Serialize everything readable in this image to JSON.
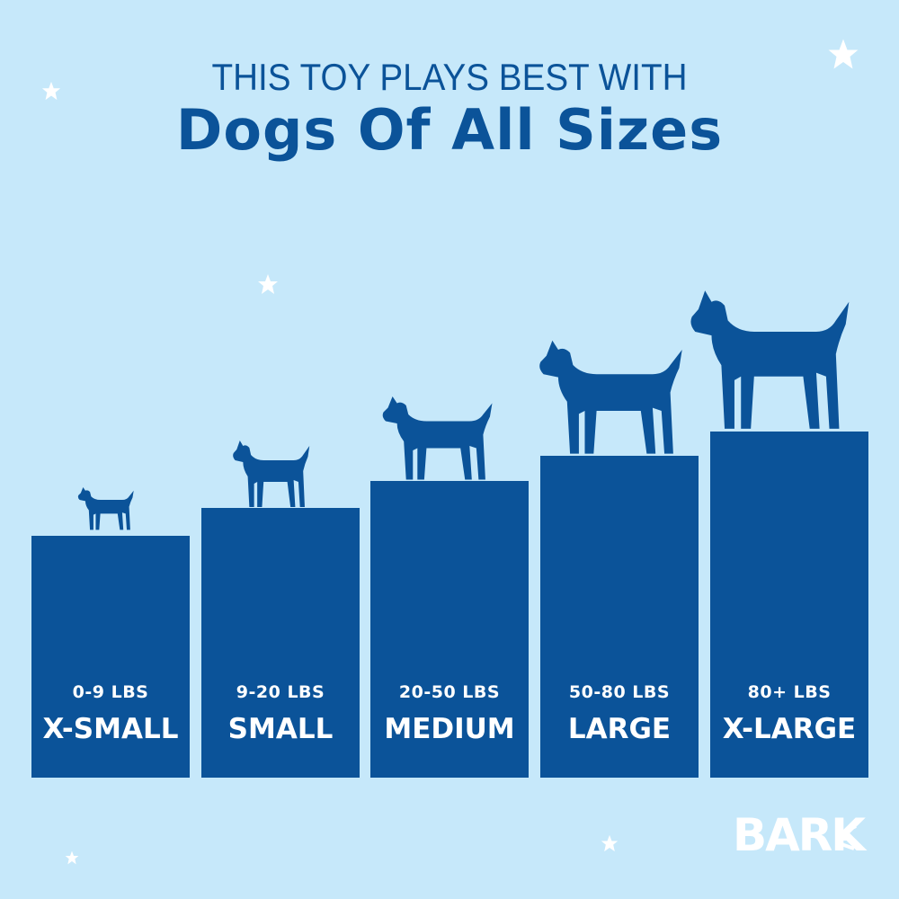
{
  "header": {
    "line1": "THIS TOY PLAYS BEST WITH",
    "line2": "Dogs Of All Sizes"
  },
  "sizes": [
    {
      "weight": "0-9 LBS",
      "label": "X-SMALL"
    },
    {
      "weight": "9-20 LBS",
      "label": "SMALL"
    },
    {
      "weight": "20-50 LBS",
      "label": "MEDIUM"
    },
    {
      "weight": "50-80 LBS",
      "label": "LARGE"
    },
    {
      "weight": "80+ LBS",
      "label": "X-LARGE"
    }
  ],
  "logo": "BARK",
  "colors": {
    "background": "#c6e8fa",
    "accent": "#0b5399",
    "white": "#ffffff"
  }
}
